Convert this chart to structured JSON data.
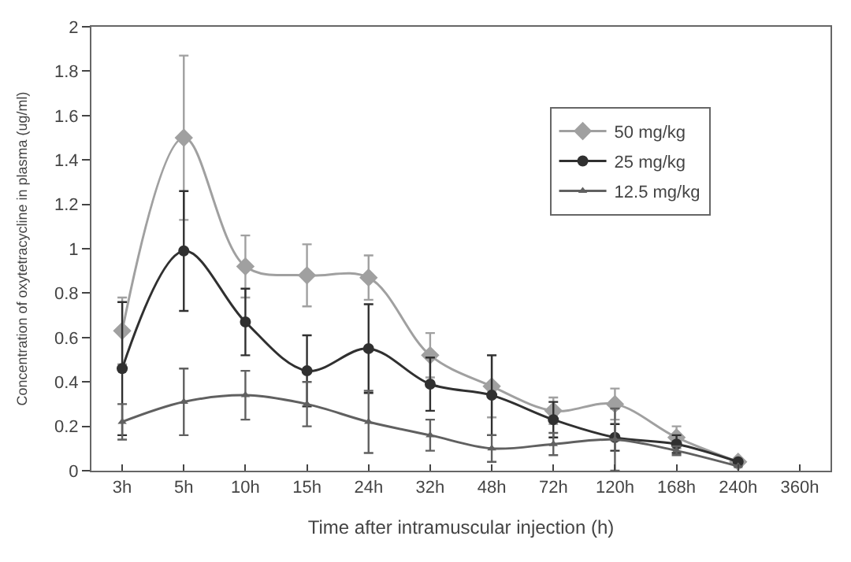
{
  "chart_data": {
    "type": "line",
    "xlabel": "Time after intramuscular injection (h)",
    "ylabel": "Concentration of oxytetracycline in plasma (ug/ml)",
    "categories": [
      "3h",
      "5h",
      "10h",
      "15h",
      "24h",
      "32h",
      "48h",
      "72h",
      "120h",
      "168h",
      "240h",
      "360h"
    ],
    "series": [
      {
        "name": "50 mg/kg",
        "color": "#a0a0a0",
        "marker": "diamond",
        "values": [
          0.63,
          1.5,
          0.92,
          0.88,
          0.87,
          0.52,
          0.38,
          0.27,
          0.3,
          0.15,
          0.04,
          null
        ],
        "errors": [
          0.15,
          0.37,
          0.14,
          0.14,
          0.1,
          0.1,
          0.14,
          0.06,
          0.07,
          0.05,
          null,
          null
        ]
      },
      {
        "name": "25 mg/kg",
        "color": "#303030",
        "marker": "circle",
        "values": [
          0.46,
          0.99,
          0.67,
          0.45,
          0.55,
          0.39,
          0.34,
          0.23,
          0.15,
          0.12,
          0.04,
          null
        ],
        "errors": [
          0.3,
          0.27,
          0.15,
          0.16,
          0.2,
          0.12,
          0.18,
          0.08,
          0.06,
          0.04,
          null,
          null
        ]
      },
      {
        "name": "12.5 mg/kg",
        "color": "#606060",
        "marker": "triangle",
        "values": [
          0.22,
          0.31,
          0.34,
          0.3,
          0.22,
          0.16,
          0.1,
          0.12,
          0.14,
          0.09,
          0.02,
          null
        ],
        "errors": [
          0.08,
          0.15,
          0.11,
          0.1,
          0.14,
          0.07,
          0.06,
          0.05,
          0.14,
          0.02,
          null,
          null
        ]
      }
    ],
    "ylim": [
      0,
      2
    ],
    "yticks": [
      0,
      0.2,
      0.4,
      0.6,
      0.8,
      1,
      1.2,
      1.4,
      1.6,
      1.8,
      2
    ],
    "legend": "top right",
    "line_style": "solid"
  }
}
